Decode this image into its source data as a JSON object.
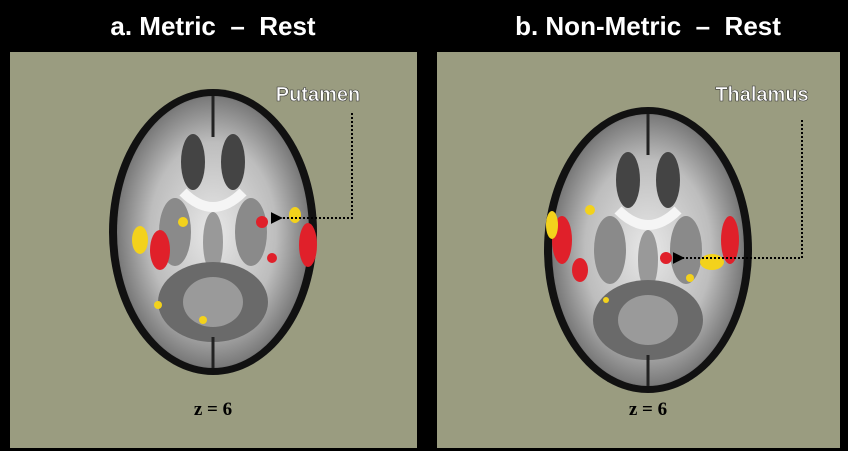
{
  "panels": [
    {
      "title": "a. Metric  –  Rest",
      "annotation": "Putamen",
      "slice": "z = 6"
    },
    {
      "title": "b. Non-Metric  –  Rest",
      "annotation": "Thalamus",
      "slice": "z = 6"
    }
  ]
}
